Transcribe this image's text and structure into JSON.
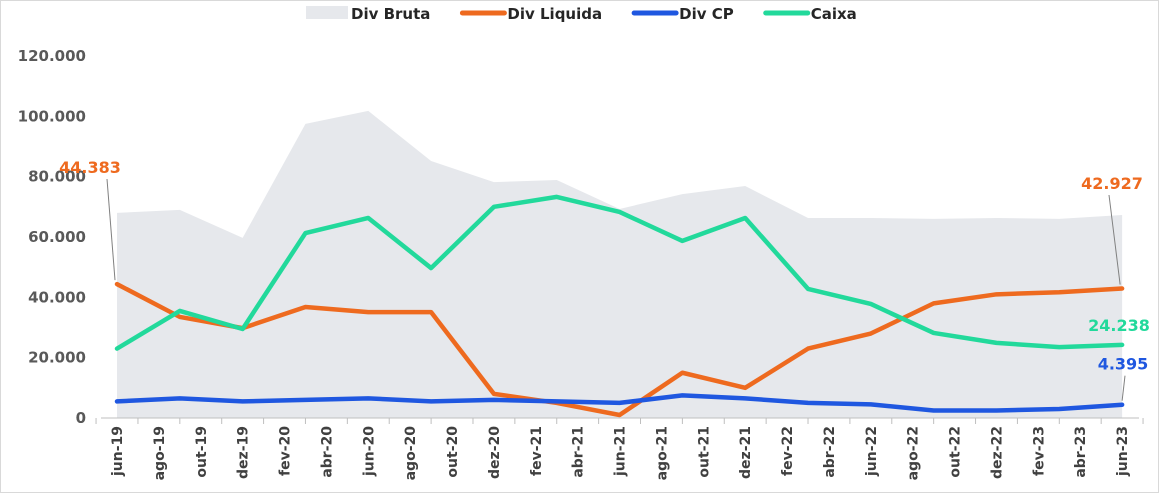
{
  "chart_data": {
    "type": "line",
    "title": "",
    "xlabel": "",
    "ylabel": "",
    "ylim": [
      0,
      120000
    ],
    "yticks": [
      "0",
      "20.000",
      "40.000",
      "60.000",
      "80.000",
      "100.000",
      "120.000"
    ],
    "ytick_values": [
      0,
      20000,
      40000,
      60000,
      80000,
      100000,
      120000
    ],
    "grid": false,
    "legend_position": "top",
    "xtick_labels": [
      "jun-19",
      "ago-19",
      "out-19",
      "dez-19",
      "fev-20",
      "abr-20",
      "jun-20",
      "ago-20",
      "out-20",
      "dez-20",
      "fev-21",
      "abr-21",
      "jun-21",
      "ago-21",
      "out-21",
      "dez-21",
      "fev-22",
      "abr-22",
      "jun-22",
      "ago-22",
      "out-22",
      "dez-22",
      "fev-23",
      "abr-23",
      "jun-23"
    ],
    "x": [
      "jun-19",
      "set-19",
      "dez-19",
      "mar-20",
      "jun-20",
      "set-20",
      "dez-20",
      "mar-21",
      "jun-21",
      "set-21",
      "dez-21",
      "mar-22",
      "jun-22",
      "set-22",
      "dez-22",
      "mar-23",
      "jun-23"
    ],
    "series": [
      {
        "name": "Div Bruta",
        "kind": "area",
        "color": "#e6e8ec",
        "values": [
          68000,
          69000,
          59700,
          97500,
          101800,
          85200,
          78200,
          78900,
          69300,
          74200,
          76900,
          66300,
          66300,
          66000,
          66300,
          66000,
          67300
        ]
      },
      {
        "name": "Div Liquida",
        "kind": "line",
        "color": "#ee6a1f",
        "values": [
          44383,
          33500,
          29800,
          36800,
          35100,
          35100,
          8000,
          5000,
          1000,
          15000,
          10000,
          23000,
          28000,
          38000,
          41000,
          41700,
          42927
        ]
      },
      {
        "name": "Div CP",
        "kind": "line",
        "color": "#1f57e0",
        "values": [
          5500,
          6500,
          5500,
          6000,
          6500,
          5500,
          6000,
          5500,
          5000,
          7500,
          6500,
          5000,
          4500,
          2500,
          2500,
          3000,
          4395
        ]
      },
      {
        "name": "Caixa",
        "kind": "line",
        "color": "#22d99b",
        "values": [
          23000,
          35500,
          29500,
          61300,
          66300,
          49700,
          70000,
          73300,
          68300,
          58700,
          66300,
          42800,
          37800,
          28200,
          24900,
          23500,
          24238
        ]
      }
    ],
    "annotations": [
      {
        "series": "Div Liquida",
        "point": "jun-19",
        "text": "44.383"
      },
      {
        "series": "Div Liquida",
        "point": "jun-23",
        "text": "42.927"
      },
      {
        "series": "Caixa",
        "point": "jun-23",
        "text": "24.238"
      },
      {
        "series": "Div CP",
        "point": "jun-23",
        "text": "4.395"
      }
    ]
  }
}
